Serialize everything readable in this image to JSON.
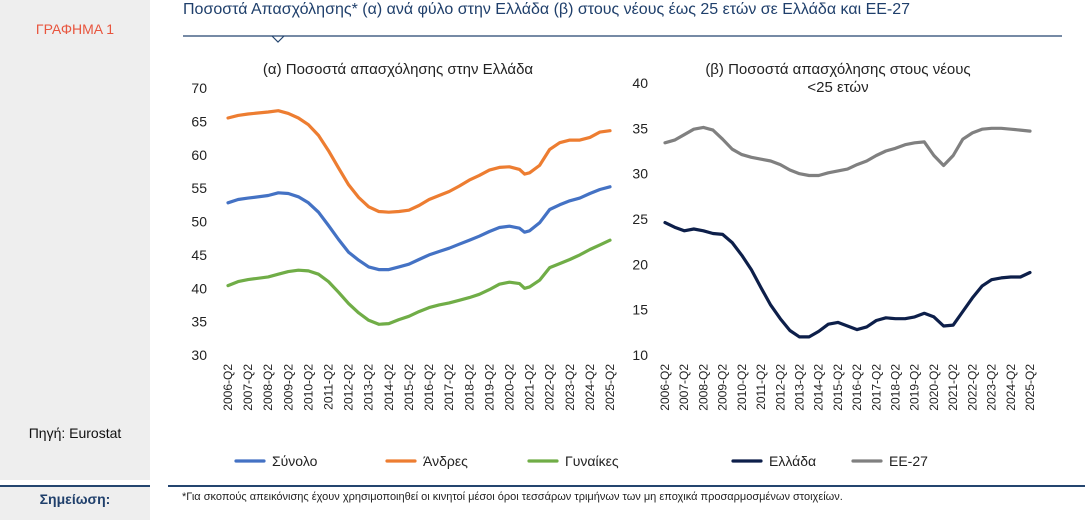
{
  "sidebar": {
    "chart_label": "ΓΡΑΦΗΜΑ 1",
    "source": "Πηγή: Eurostat"
  },
  "header": {
    "title": "Ποσοστά Απασχόλησης* (α) ανά φύλο στην Ελλάδα (β) στους νέους έως 25 ετών σε Ελλάδα και ΕΕ-27"
  },
  "footer": {
    "note_label": "Σημείωση:",
    "note_text": "*Για σκοπούς απεικόνισης έχουν χρησιμοποιηθεί οι κινητοί μέσοι όροι τεσσάρων τριμήνων των μη εποχικά προσαρμοσμένων στοιχείων."
  },
  "colors": {
    "title": "#1f3f6b",
    "accent_red": "#e8553e",
    "divider": "#24456f"
  },
  "chart_data": [
    {
      "type": "line",
      "title": "(α) Ποσοστά απασχόλησης στην Ελλάδα",
      "xlabel": "",
      "ylabel": "",
      "ylim": [
        30,
        70
      ],
      "yticks": [
        30,
        35,
        40,
        45,
        50,
        55,
        60,
        65,
        70
      ],
      "x_start": "2006-Q2",
      "x_end": "2025-Q2",
      "tick_labels": [
        "2006-Q2",
        "2007-Q2",
        "2008-Q2",
        "2009-Q2",
        "2010-Q2",
        "2011-Q2",
        "2012-Q2",
        "2013-Q2",
        "2014-Q2",
        "2015-Q2",
        "2016-Q2",
        "2017-Q2",
        "2018-Q2",
        "2019-Q2",
        "2020-Q2",
        "2021-Q2",
        "2022-Q2",
        "2023-Q2",
        "2024-Q2",
        "2025-Q2"
      ],
      "grid": false,
      "legend_position": "bottom",
      "series": [
        {
          "name": "Σύνολο",
          "color": "#4472c4",
          "points": [
            [
              "2006-Q2",
              52.8
            ],
            [
              "2006-Q4",
              53.3
            ],
            [
              "2007-Q2",
              53.5
            ],
            [
              "2008-Q2",
              53.9
            ],
            [
              "2008-Q4",
              54.3
            ],
            [
              "2009-Q2",
              54.2
            ],
            [
              "2009-Q4",
              53.7
            ],
            [
              "2010-Q2",
              52.8
            ],
            [
              "2010-Q4",
              51.4
            ],
            [
              "2011-Q2",
              49.4
            ],
            [
              "2011-Q4",
              47.3
            ],
            [
              "2012-Q2",
              45.4
            ],
            [
              "2012-Q4",
              44.2
            ],
            [
              "2013-Q2",
              43.2
            ],
            [
              "2013-Q4",
              42.8
            ],
            [
              "2014-Q2",
              42.8
            ],
            [
              "2014-Q4",
              43.2
            ],
            [
              "2015-Q2",
              43.6
            ],
            [
              "2015-Q4",
              44.3
            ],
            [
              "2016-Q2",
              45.0
            ],
            [
              "2016-Q4",
              45.5
            ],
            [
              "2017-Q2",
              46.0
            ],
            [
              "2017-Q4",
              46.6
            ],
            [
              "2018-Q2",
              47.2
            ],
            [
              "2018-Q4",
              47.8
            ],
            [
              "2019-Q2",
              48.5
            ],
            [
              "2019-Q4",
              49.1
            ],
            [
              "2020-Q2",
              49.3
            ],
            [
              "2020-Q4",
              49.0
            ],
            [
              "2021-Q1",
              48.4
            ],
            [
              "2021-Q2",
              48.6
            ],
            [
              "2021-Q4",
              49.8
            ],
            [
              "2022-Q2",
              51.8
            ],
            [
              "2022-Q4",
              52.5
            ],
            [
              "2023-Q2",
              53.1
            ],
            [
              "2023-Q4",
              53.5
            ],
            [
              "2024-Q2",
              54.2
            ],
            [
              "2024-Q4",
              54.8
            ],
            [
              "2025-Q2",
              55.2
            ]
          ]
        },
        {
          "name": "Άνδρες",
          "color": "#ed7d31",
          "points": [
            [
              "2006-Q2",
              65.5
            ],
            [
              "2006-Q4",
              65.9
            ],
            [
              "2007-Q2",
              66.1
            ],
            [
              "2008-Q2",
              66.4
            ],
            [
              "2008-Q4",
              66.6
            ],
            [
              "2009-Q2",
              66.2
            ],
            [
              "2009-Q4",
              65.5
            ],
            [
              "2010-Q2",
              64.5
            ],
            [
              "2010-Q4",
              62.9
            ],
            [
              "2011-Q2",
              60.6
            ],
            [
              "2011-Q4",
              58.0
            ],
            [
              "2012-Q2",
              55.5
            ],
            [
              "2012-Q4",
              53.6
            ],
            [
              "2013-Q2",
              52.2
            ],
            [
              "2013-Q4",
              51.5
            ],
            [
              "2014-Q2",
              51.4
            ],
            [
              "2014-Q4",
              51.5
            ],
            [
              "2015-Q2",
              51.7
            ],
            [
              "2015-Q4",
              52.4
            ],
            [
              "2016-Q2",
              53.3
            ],
            [
              "2016-Q4",
              53.9
            ],
            [
              "2017-Q2",
              54.5
            ],
            [
              "2017-Q4",
              55.3
            ],
            [
              "2018-Q2",
              56.2
            ],
            [
              "2018-Q4",
              56.9
            ],
            [
              "2019-Q2",
              57.7
            ],
            [
              "2019-Q4",
              58.1
            ],
            [
              "2020-Q2",
              58.2
            ],
            [
              "2020-Q4",
              57.8
            ],
            [
              "2021-Q1",
              57.1
            ],
            [
              "2021-Q2",
              57.3
            ],
            [
              "2021-Q4",
              58.4
            ],
            [
              "2022-Q2",
              60.8
            ],
            [
              "2022-Q4",
              61.8
            ],
            [
              "2023-Q2",
              62.2
            ],
            [
              "2023-Q4",
              62.2
            ],
            [
              "2024-Q2",
              62.6
            ],
            [
              "2024-Q4",
              63.4
            ],
            [
              "2025-Q2",
              63.6
            ]
          ]
        },
        {
          "name": "Γυναίκες",
          "color": "#70ad47",
          "points": [
            [
              "2006-Q2",
              40.4
            ],
            [
              "2006-Q4",
              41.0
            ],
            [
              "2007-Q2",
              41.3
            ],
            [
              "2008-Q2",
              41.7
            ],
            [
              "2008-Q4",
              42.1
            ],
            [
              "2009-Q2",
              42.5
            ],
            [
              "2009-Q4",
              42.7
            ],
            [
              "2010-Q2",
              42.6
            ],
            [
              "2010-Q4",
              42.1
            ],
            [
              "2011-Q2",
              41.0
            ],
            [
              "2011-Q4",
              39.4
            ],
            [
              "2012-Q2",
              37.7
            ],
            [
              "2012-Q4",
              36.3
            ],
            [
              "2013-Q2",
              35.2
            ],
            [
              "2013-Q4",
              34.6
            ],
            [
              "2014-Q2",
              34.7
            ],
            [
              "2014-Q4",
              35.3
            ],
            [
              "2015-Q2",
              35.8
            ],
            [
              "2015-Q4",
              36.5
            ],
            [
              "2016-Q2",
              37.1
            ],
            [
              "2016-Q4",
              37.5
            ],
            [
              "2017-Q2",
              37.8
            ],
            [
              "2017-Q4",
              38.2
            ],
            [
              "2018-Q2",
              38.6
            ],
            [
              "2018-Q4",
              39.1
            ],
            [
              "2019-Q2",
              39.8
            ],
            [
              "2019-Q4",
              40.6
            ],
            [
              "2020-Q2",
              40.9
            ],
            [
              "2020-Q4",
              40.7
            ],
            [
              "2021-Q1",
              40.0
            ],
            [
              "2021-Q2",
              40.2
            ],
            [
              "2021-Q4",
              41.2
            ],
            [
              "2022-Q2",
              43.1
            ],
            [
              "2022-Q4",
              43.7
            ],
            [
              "2023-Q2",
              44.3
            ],
            [
              "2023-Q4",
              45.0
            ],
            [
              "2024-Q2",
              45.8
            ],
            [
              "2024-Q4",
              46.5
            ],
            [
              "2025-Q2",
              47.2
            ]
          ]
        }
      ]
    },
    {
      "type": "line",
      "title": "(β) Ποσοστά απασχόλησης στους νέους <25 ετών",
      "xlabel": "",
      "ylabel": "",
      "ylim": [
        10,
        40
      ],
      "yticks": [
        10,
        15,
        20,
        25,
        30,
        35,
        40
      ],
      "x_start": "2006-Q2",
      "x_end": "2025-Q2",
      "tick_labels": [
        "2006-Q2",
        "2007-Q2",
        "2008-Q2",
        "2009-Q2",
        "2010-Q2",
        "2011-Q2",
        "2012-Q2",
        "2013-Q2",
        "2014-Q2",
        "2015-Q2",
        "2016-Q2",
        "2017-Q2",
        "2018-Q2",
        "2019-Q2",
        "2020-Q2",
        "2021-Q2",
        "2022-Q2",
        "2023-Q2",
        "2024-Q2",
        "2025-Q2"
      ],
      "grid": false,
      "legend_position": "bottom",
      "series": [
        {
          "name": "Ελλάδα",
          "color": "#0d1f4a",
          "points": [
            [
              "2006-Q2",
              24.6
            ],
            [
              "2006-Q4",
              24.1
            ],
            [
              "2007-Q2",
              23.7
            ],
            [
              "2007-Q4",
              23.9
            ],
            [
              "2008-Q2",
              23.7
            ],
            [
              "2008-Q4",
              23.4
            ],
            [
              "2009-Q2",
              23.3
            ],
            [
              "2009-Q4",
              22.4
            ],
            [
              "2010-Q2",
              21.0
            ],
            [
              "2010-Q4",
              19.4
            ],
            [
              "2011-Q2",
              17.4
            ],
            [
              "2011-Q4",
              15.5
            ],
            [
              "2012-Q2",
              14.0
            ],
            [
              "2012-Q4",
              12.7
            ],
            [
              "2013-Q2",
              12.0
            ],
            [
              "2013-Q4",
              12.0
            ],
            [
              "2014-Q2",
              12.6
            ],
            [
              "2014-Q4",
              13.4
            ],
            [
              "2015-Q2",
              13.6
            ],
            [
              "2015-Q4",
              13.2
            ],
            [
              "2016-Q2",
              12.8
            ],
            [
              "2016-Q4",
              13.1
            ],
            [
              "2017-Q2",
              13.8
            ],
            [
              "2017-Q4",
              14.1
            ],
            [
              "2018-Q2",
              14.0
            ],
            [
              "2018-Q4",
              14.0
            ],
            [
              "2019-Q2",
              14.2
            ],
            [
              "2019-Q4",
              14.6
            ],
            [
              "2020-Q2",
              14.2
            ],
            [
              "2020-Q4",
              13.2
            ],
            [
              "2021-Q2",
              13.3
            ],
            [
              "2021-Q4",
              14.8
            ],
            [
              "2022-Q2",
              16.3
            ],
            [
              "2022-Q4",
              17.6
            ],
            [
              "2023-Q2",
              18.3
            ],
            [
              "2023-Q4",
              18.5
            ],
            [
              "2024-Q2",
              18.6
            ],
            [
              "2024-Q4",
              18.6
            ],
            [
              "2025-Q2",
              19.1
            ]
          ]
        },
        {
          "name": "ΕΕ-27",
          "color": "#808080",
          "points": [
            [
              "2006-Q2",
              33.4
            ],
            [
              "2006-Q4",
              33.7
            ],
            [
              "2007-Q2",
              34.3
            ],
            [
              "2007-Q4",
              34.9
            ],
            [
              "2008-Q2",
              35.1
            ],
            [
              "2008-Q4",
              34.8
            ],
            [
              "2009-Q2",
              33.8
            ],
            [
              "2009-Q4",
              32.7
            ],
            [
              "2010-Q2",
              32.1
            ],
            [
              "2010-Q4",
              31.8
            ],
            [
              "2011-Q2",
              31.6
            ],
            [
              "2011-Q4",
              31.4
            ],
            [
              "2012-Q2",
              31.0
            ],
            [
              "2012-Q4",
              30.4
            ],
            [
              "2013-Q2",
              30.0
            ],
            [
              "2013-Q4",
              29.8
            ],
            [
              "2014-Q2",
              29.8
            ],
            [
              "2014-Q4",
              30.1
            ],
            [
              "2015-Q2",
              30.3
            ],
            [
              "2015-Q4",
              30.5
            ],
            [
              "2016-Q2",
              31.0
            ],
            [
              "2016-Q4",
              31.4
            ],
            [
              "2017-Q2",
              32.0
            ],
            [
              "2017-Q4",
              32.5
            ],
            [
              "2018-Q2",
              32.8
            ],
            [
              "2018-Q4",
              33.2
            ],
            [
              "2019-Q2",
              33.4
            ],
            [
              "2019-Q4",
              33.5
            ],
            [
              "2020-Q2",
              32.0
            ],
            [
              "2020-Q4",
              30.9
            ],
            [
              "2021-Q2",
              32.0
            ],
            [
              "2021-Q4",
              33.8
            ],
            [
              "2022-Q2",
              34.5
            ],
            [
              "2022-Q4",
              34.9
            ],
            [
              "2023-Q2",
              35.0
            ],
            [
              "2023-Q4",
              35.0
            ],
            [
              "2024-Q2",
              34.9
            ],
            [
              "2024-Q4",
              34.8
            ],
            [
              "2025-Q2",
              34.7
            ]
          ]
        }
      ]
    }
  ]
}
